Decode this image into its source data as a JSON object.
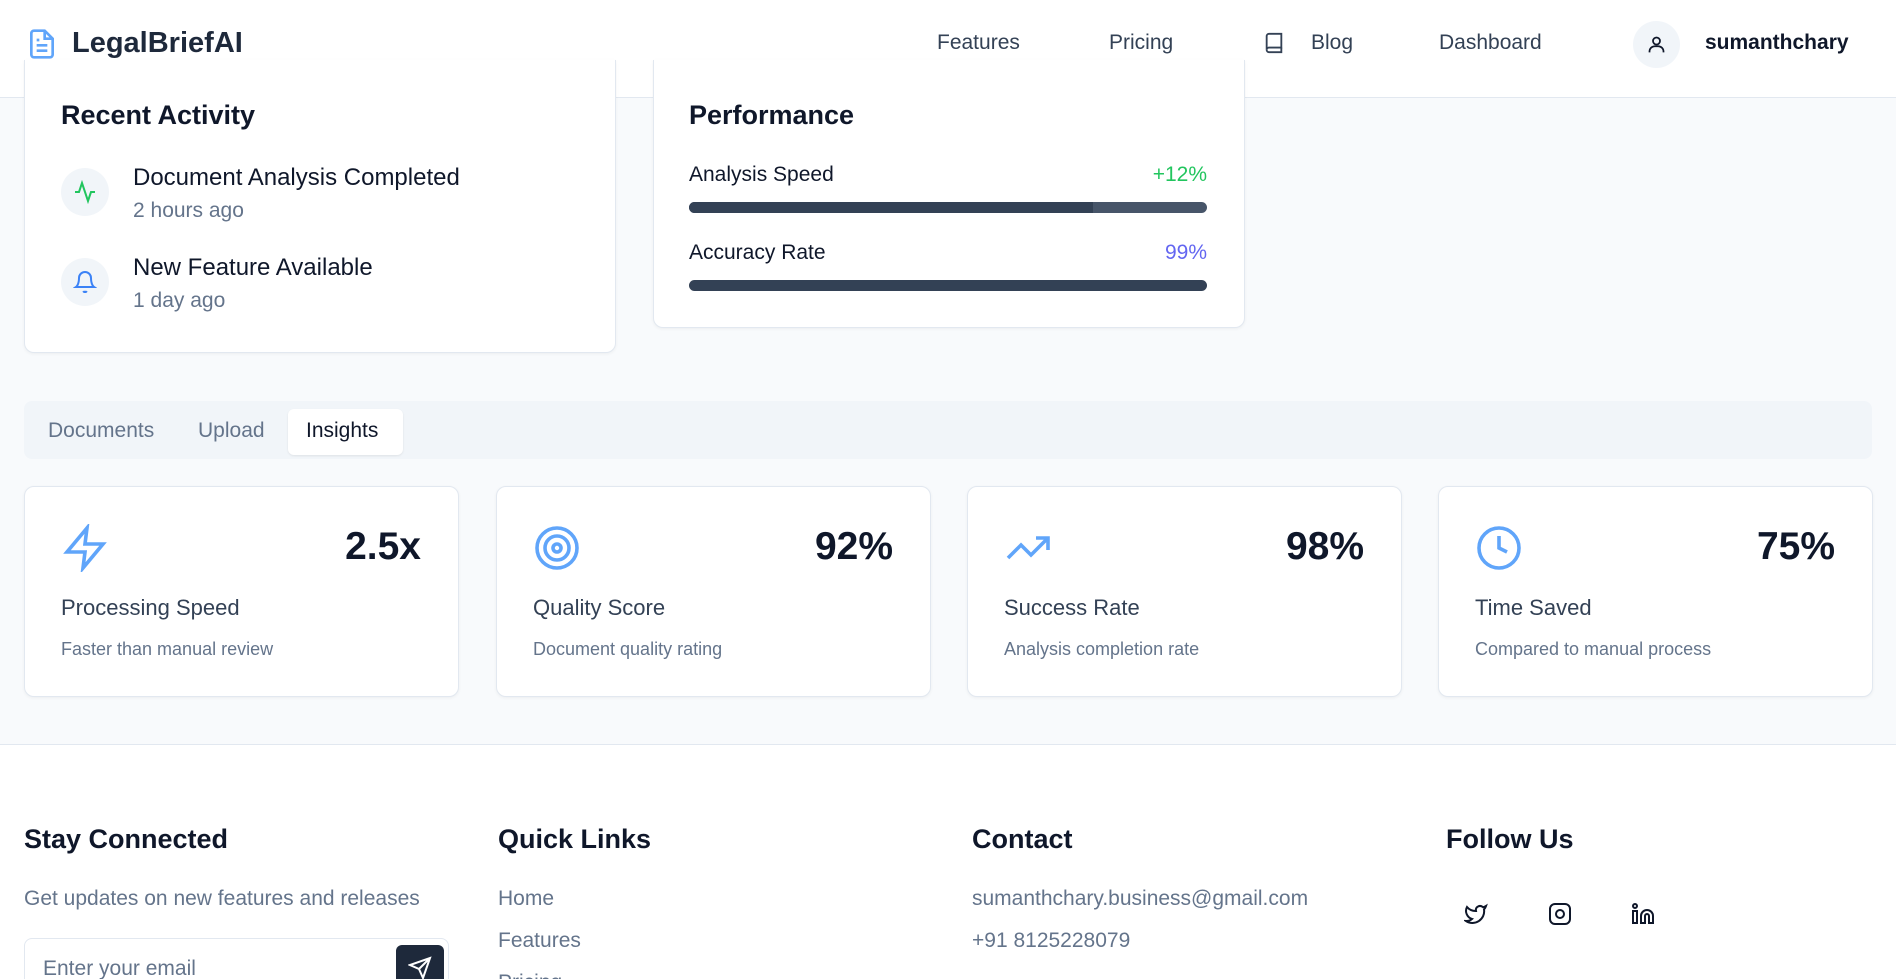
{
  "header": {
    "brand": "LegalBriefAI",
    "nav": [
      "Features",
      "Pricing",
      "Blog",
      "Dashboard"
    ],
    "user": "sumanthchary"
  },
  "recent_activity": {
    "title": "Recent Activity",
    "items": [
      {
        "title": "Document Analysis Completed",
        "time": "2 hours ago"
      },
      {
        "title": "New Feature Available",
        "time": "1 day ago"
      }
    ]
  },
  "performance": {
    "title": "Performance",
    "metrics": [
      {
        "name": "Analysis Speed",
        "change": "+12%"
      },
      {
        "name": "Accuracy Rate",
        "change": "99%"
      }
    ]
  },
  "tabs": [
    "Documents",
    "Upload",
    "Insights"
  ],
  "stats": [
    {
      "value": "2.5x",
      "label": "Processing Speed",
      "desc": "Faster than manual review"
    },
    {
      "value": "92%",
      "label": "Quality Score",
      "desc": "Document quality rating"
    },
    {
      "value": "98%",
      "label": "Success Rate",
      "desc": "Analysis completion rate"
    },
    {
      "value": "75%",
      "label": "Time Saved",
      "desc": "Compared to manual process"
    }
  ],
  "footer": {
    "columns": [
      {
        "title": "Stay Connected",
        "text": "Get updates on new features and releases",
        "input_placeholder": "Enter your email"
      },
      {
        "title": "Quick Links",
        "links": [
          "Home",
          "Features",
          "Pricing"
        ]
      },
      {
        "title": "Contact",
        "lines": [
          "sumanthchary.business@gmail.com",
          "+91 8125228079"
        ]
      },
      {
        "title": "Follow Us"
      }
    ]
  }
}
